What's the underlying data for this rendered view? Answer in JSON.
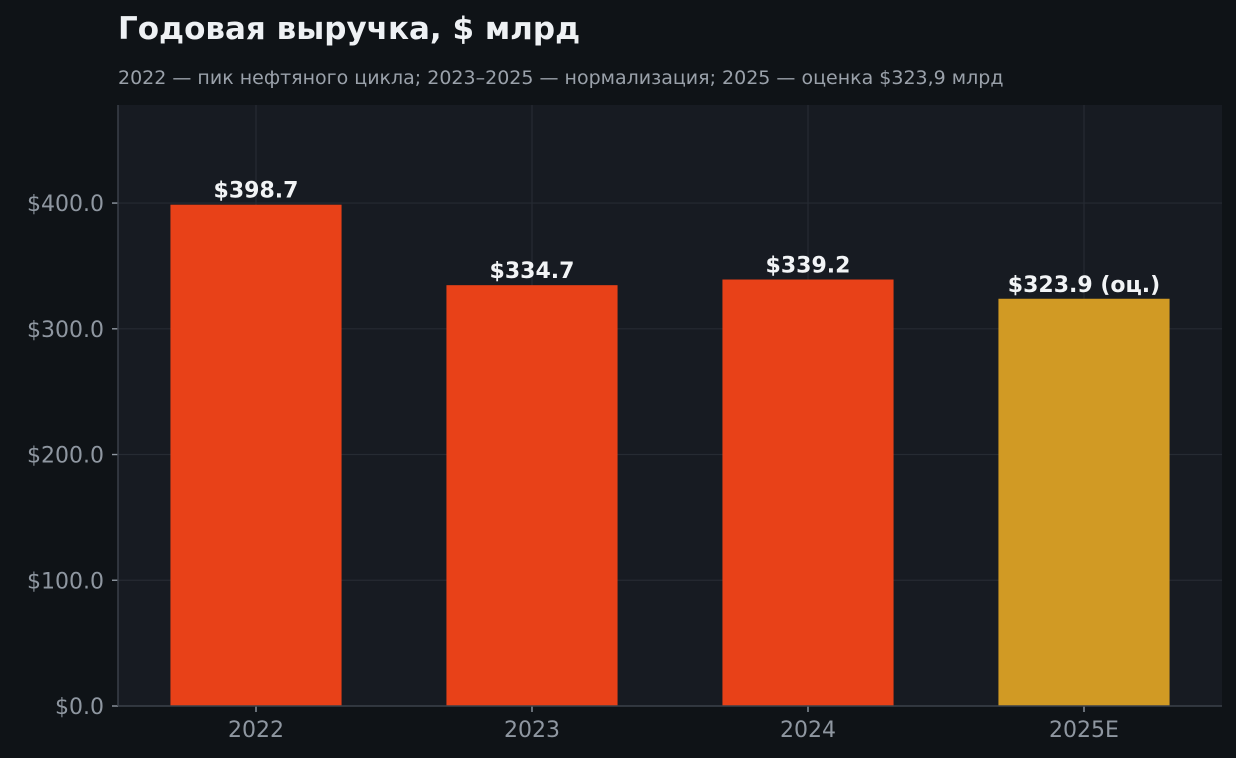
{
  "chart_data": {
    "type": "bar",
    "title": "Годовая выручка, $ млрд",
    "subtitle": "2022 — пик нефтяного цикла; 2023–2025 — нормализация; 2025 — оценка $323,9 млрд",
    "xlabel": "",
    "ylabel": "",
    "categories": [
      "2022",
      "2023",
      "2024",
      "2025E"
    ],
    "values": [
      398.7,
      334.7,
      339.2,
      323.9
    ],
    "data_labels": [
      "$398.7",
      "$334.7",
      "$339.2",
      "$323.9 (оц.)"
    ],
    "y_ticks": [
      0,
      100,
      200,
      300,
      400
    ],
    "y_tick_labels": [
      "$0.0",
      "$100.0",
      "$200.0",
      "$300.0",
      "$400.0"
    ],
    "ylim": [
      0,
      478
    ],
    "grid": true,
    "legend": "none",
    "colors": {
      "actual": "#e84118",
      "estimate": "#d19a24",
      "background": "#0f1317",
      "plot_background": "#171b22",
      "grid": "#262b33"
    },
    "bar_colors": [
      "#e84118",
      "#e84118",
      "#e84118",
      "#d19a24"
    ]
  }
}
